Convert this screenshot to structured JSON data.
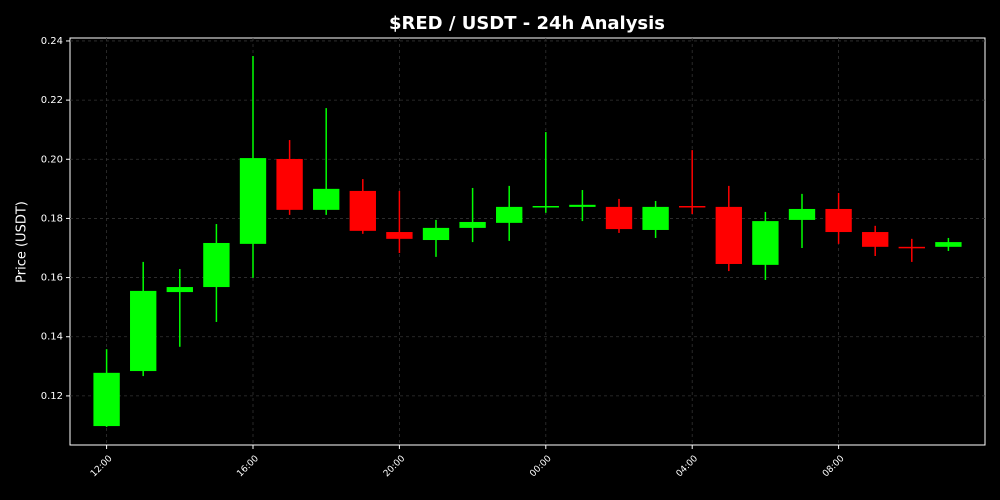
{
  "chart_data": {
    "type": "candlestick",
    "title": "$RED / USDT - 24h Analysis",
    "y_label": "Price (USDT)",
    "categories": [
      "12:00",
      null,
      null,
      null,
      "16:00",
      null,
      null,
      null,
      "20:00",
      null,
      null,
      null,
      "00:00",
      null,
      null,
      null,
      "04:00",
      null,
      null,
      null,
      "08:00",
      null,
      null,
      null
    ],
    "open": [
      0.1098,
      0.1284,
      0.1551,
      0.1568,
      0.1714,
      0.2001,
      0.1829,
      0.1893,
      0.1754,
      0.1727,
      0.1768,
      0.1785,
      0.1839,
      0.1839,
      0.1839,
      0.1761,
      0.1842,
      0.1839,
      0.1643,
      0.1795,
      0.1832,
      0.1754,
      0.1704,
      0.1704
    ],
    "high": [
      0.1358,
      0.1653,
      0.1629,
      0.1781,
      0.2349,
      0.2065,
      0.2173,
      0.1933,
      0.1893,
      0.1795,
      0.1903,
      0.191,
      0.2092,
      0.1896,
      0.1866,
      0.1859,
      0.2031,
      0.191,
      0.1822,
      0.1883,
      0.1886,
      0.1775,
      0.1731,
      0.1734
    ],
    "low": [
      0.1095,
      0.1267,
      0.1366,
      0.145,
      0.1599,
      0.1812,
      0.1812,
      0.1748,
      0.1683,
      0.167,
      0.172,
      0.1724,
      0.1819,
      0.1791,
      0.1751,
      0.1734,
      0.1815,
      0.1622,
      0.1592,
      0.17,
      0.1714,
      0.1673,
      0.1653,
      0.169
    ],
    "close": [
      0.1278,
      0.1555,
      0.1568,
      0.1717,
      0.2004,
      0.1829,
      0.19,
      0.1758,
      0.1731,
      0.1768,
      0.1788,
      0.1839,
      0.1842,
      0.1846,
      0.1764,
      0.1839,
      0.1839,
      0.1646,
      0.1791,
      0.1832,
      0.1754,
      0.1704,
      0.17,
      0.172
    ],
    "up_color": "#00ff00",
    "down_color": "#ff0000",
    "ylim": [
      0.1034,
      0.241
    ],
    "yticks": [
      0.12,
      0.14,
      0.16,
      0.18,
      {
        "value": 0.2,
        "label": "0.20"
      },
      0.22,
      0.24
    ],
    "grid": true
  }
}
